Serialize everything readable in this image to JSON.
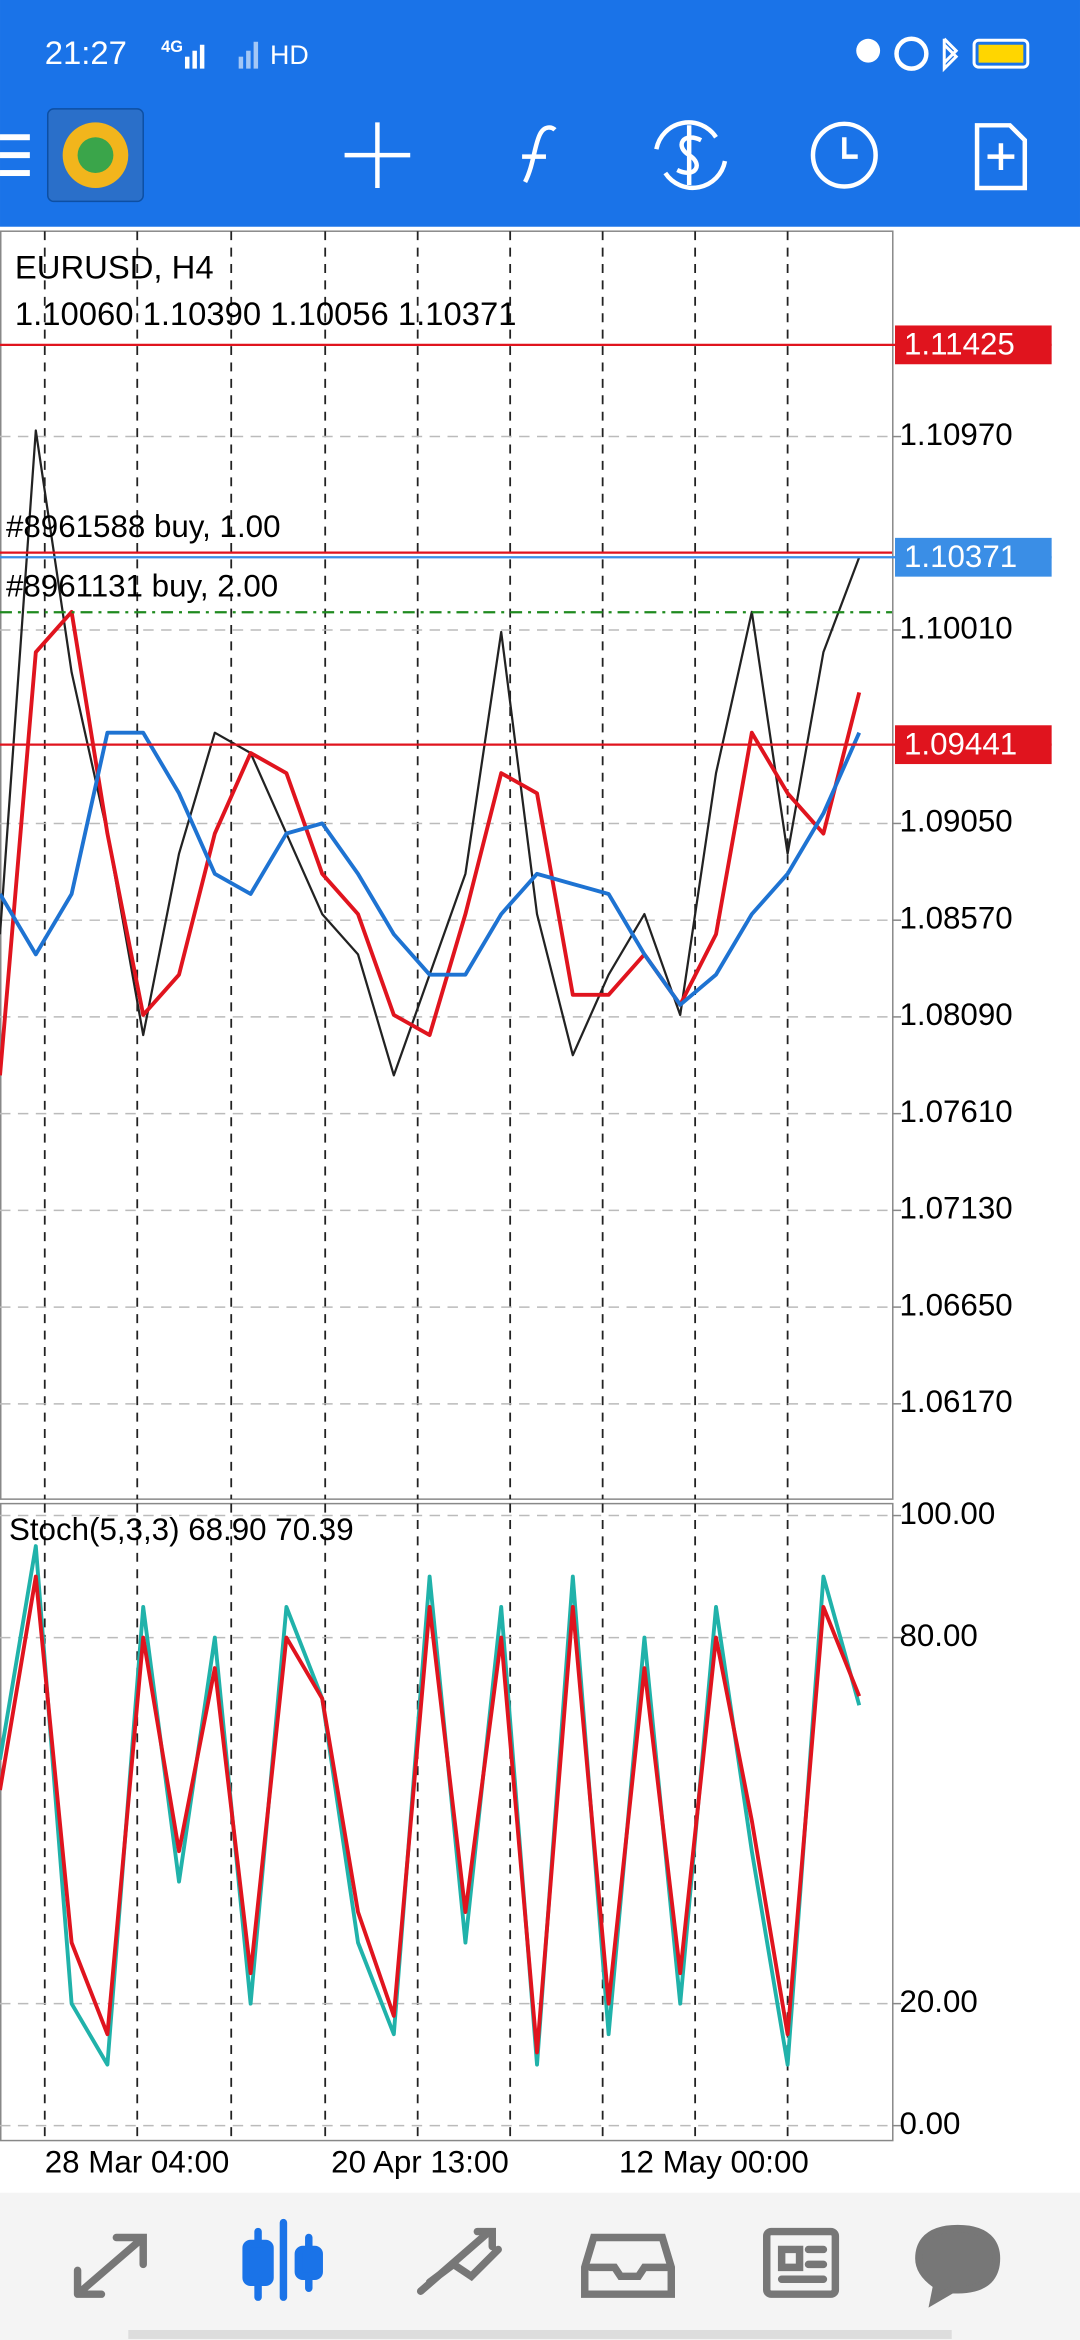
{
  "status_bar": {
    "time": "21:27",
    "network": "4G",
    "hd": "HD"
  },
  "chart_data": [
    {
      "type": "line",
      "title": "EURUSD, H4",
      "subtitle": "1.10060 1.10390 1.10056 1.10371",
      "ylim": [
        1.05697,
        1.11989
      ],
      "yticks": [
        {
          "value": 1.1097,
          "label": "1.10970"
        },
        {
          "value": 1.1001,
          "label": "1.10010"
        },
        {
          "value": 1.0905,
          "label": "1.09050"
        },
        {
          "value": 1.0857,
          "label": "1.08570"
        },
        {
          "value": 1.0809,
          "label": "1.08090"
        },
        {
          "value": 1.0761,
          "label": "1.07610"
        },
        {
          "value": 1.0713,
          "label": "1.07130"
        },
        {
          "value": 1.0665,
          "label": "1.06650"
        },
        {
          "value": 1.0617,
          "label": "1.06170"
        }
      ],
      "grid": true,
      "xtick_labels": [
        "28 Mar 04:00",
        "20 Apr 13:00",
        "12 May 00:00"
      ],
      "series": [
        {
          "color": "#222222",
          "values": [
            1.085,
            1.11,
            1.098,
            1.09,
            1.08,
            1.089,
            1.095,
            1.094,
            1.09,
            1.086,
            1.084,
            1.078,
            1.083,
            1.088,
            1.1,
            1.086,
            1.079,
            1.083,
            1.086,
            1.081,
            1.093,
            1.101,
            1.089,
            1.099,
            1.10371
          ]
        },
        {
          "color": "#e0141e",
          "values": [
            1.078,
            1.099,
            1.101,
            1.09,
            1.081,
            1.083,
            1.09,
            1.094,
            1.093,
            1.088,
            1.086,
            1.081,
            1.08,
            1.086,
            1.093,
            1.092,
            1.082,
            1.082,
            1.084,
            1.0815,
            1.085,
            1.095,
            1.092,
            1.09,
            1.097
          ]
        },
        {
          "color": "#1e73d2",
          "values": [
            1.087,
            1.084,
            1.087,
            1.095,
            1.095,
            1.092,
            1.088,
            1.087,
            1.09,
            1.0905,
            1.088,
            1.085,
            1.083,
            1.083,
            1.086,
            1.088,
            1.0875,
            1.087,
            1.084,
            1.0815,
            1.083,
            1.086,
            1.088,
            1.091,
            1.095
          ]
        }
      ],
      "levels": [
        {
          "value": 1.11425,
          "color": "#e0141e"
        },
        {
          "value": 1.10371,
          "color": "#3a8ee6"
        },
        {
          "value": 1.09441,
          "color": "#e0141e"
        }
      ],
      "orders": [
        {
          "label": "#8961588 buy, 1.00",
          "value": 1.10394,
          "color": "#e0141e"
        },
        {
          "label": "#8961131 buy, 2.00",
          "value": 1.10098,
          "color": "#1f8a1f"
        }
      ]
    },
    {
      "type": "line",
      "title": "Stoch(5,3,3) 68.90 70.39",
      "ylim": [
        0,
        100
      ],
      "yticks": [
        {
          "value": 100,
          "label": "100.00"
        },
        {
          "value": 80,
          "label": "80.00"
        },
        {
          "value": 20,
          "label": "20.00"
        },
        {
          "value": 0,
          "label": "0.00"
        }
      ],
      "grid": true,
      "series": [
        {
          "color": "#20b2aa",
          "values": [
            60,
            95,
            20,
            10,
            85,
            40,
            80,
            20,
            85,
            70,
            30,
            15,
            90,
            30,
            85,
            10,
            90,
            15,
            80,
            20,
            85,
            45,
            10,
            90,
            68.9
          ]
        },
        {
          "color": "#e0141e",
          "values": [
            55,
            90,
            30,
            15,
            80,
            45,
            75,
            25,
            80,
            70,
            35,
            18,
            85,
            35,
            80,
            12,
            85,
            20,
            75,
            25,
            80,
            50,
            15,
            85,
            70.39
          ]
        }
      ]
    }
  ],
  "bottom_nav": {
    "active": 1
  }
}
